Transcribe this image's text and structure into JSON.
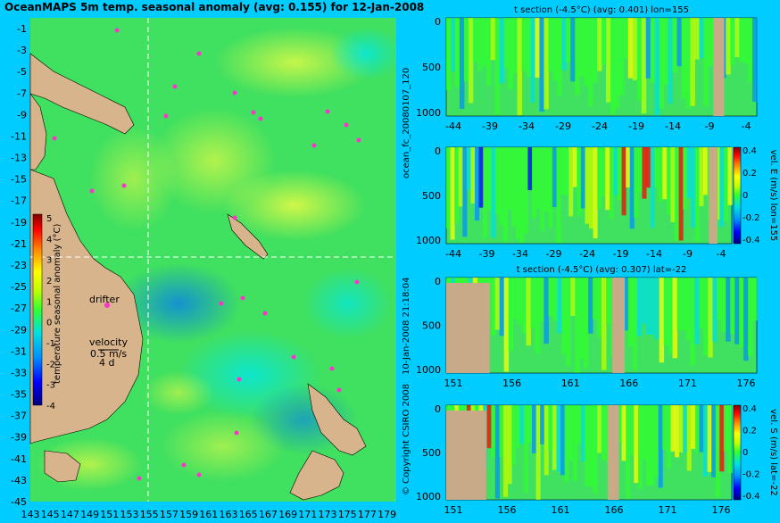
{
  "map": {
    "title": "OceanMAPS 5m temp. seasonal anomaly (avg: 0.155) for 12-Jan-2008",
    "lat_ticks": [
      "-1",
      "-3",
      "-5",
      "-7",
      "-9",
      "-11",
      "-13",
      "-15",
      "-17",
      "-19",
      "-21",
      "-23",
      "-25",
      "-27",
      "-29",
      "-31",
      "-33",
      "-35",
      "-37",
      "-39",
      "-41",
      "-43",
      "-45"
    ],
    "lon_ticks": [
      "143",
      "145",
      "147",
      "149",
      "151",
      "153",
      "155",
      "157",
      "159",
      "161",
      "163",
      "165",
      "167",
      "169",
      "171",
      "173",
      "175",
      "177",
      "179"
    ],
    "drifter_label": "drifter",
    "velocity_label": "velocity",
    "velocity_value": "0.5 m/s",
    "velocity_days": "4 d",
    "colorbar": {
      "label": "temperature seasonal anomaly (°C)",
      "ticks": [
        "5",
        "4",
        "3",
        "2",
        "1",
        "0",
        "-1",
        "-2",
        "-3",
        "-4"
      ]
    }
  },
  "side_texts": {
    "run_id": "ocean_fc_20080107_120",
    "timestamp": "10-Jan-2008 21:18:04",
    "copyright": "© Copyright CSIRO 2008"
  },
  "panels": [
    {
      "title": "t section (-4.5°C) (avg: 0.401) lon=155",
      "y_ticks": [
        "0",
        "500",
        "1000"
      ],
      "x_ticks": [
        "-44",
        "-39",
        "-34",
        "-29",
        "-24",
        "-19",
        "-14",
        "-9",
        "-4"
      ],
      "right_label": ""
    },
    {
      "title": "",
      "y_ticks": [
        "0",
        "500",
        "1000"
      ],
      "x_ticks": [
        "-44",
        "-39",
        "-34",
        "-29",
        "-24",
        "-19",
        "-14",
        "-9",
        "-4"
      ],
      "right_label": "vel. E (m/s) lon=155",
      "cbar_ticks": [
        "0.4",
        "0.2",
        "0",
        "-0.2",
        "-0.4"
      ]
    },
    {
      "title": "t section (-4.5°C) (avg: 0.307) lat=-22",
      "y_ticks": [
        "0",
        "500",
        "1000"
      ],
      "x_ticks": [
        "151",
        "156",
        "161",
        "166",
        "171",
        "176"
      ],
      "right_label": ""
    },
    {
      "title": "",
      "y_ticks": [
        "0",
        "500",
        "1000"
      ],
      "x_ticks": [
        "151",
        "156",
        "161",
        "166",
        "171",
        "176"
      ],
      "right_label": "vel. S (m/s) lat=-22",
      "cbar_ticks": [
        "0.4",
        "0.2",
        "0",
        "-0.2",
        "-0.4"
      ]
    }
  ],
  "colors": {
    "background": "#00ccff",
    "land": "#d8b48c",
    "section_mask": "#c8aa88",
    "drifter": "#ff33cc",
    "scale": [
      "#00007f",
      "#0000ff",
      "#0080ff",
      "#00e0ff",
      "#40ff40",
      "#c0ff00",
      "#ffff00",
      "#ff8000",
      "#ff0000",
      "#800000"
    ]
  },
  "chart_data": [
    {
      "type": "heatmap",
      "title": "OceanMAPS 5m temp. seasonal anomaly (avg: 0.155) for 12-Jan-2008",
      "x_ticks": [
        143,
        145,
        147,
        149,
        151,
        153,
        155,
        157,
        159,
        161,
        163,
        165,
        167,
        169,
        171,
        173,
        175,
        177,
        179
      ],
      "y_ticks": [
        -1,
        -3,
        -5,
        -7,
        -9,
        -11,
        -13,
        -15,
        -17,
        -19,
        -21,
        -23,
        -25,
        -27,
        -29,
        -31,
        -33,
        -35,
        -37,
        -39,
        -41,
        -43,
        -45
      ],
      "xlim": [
        143,
        180
      ],
      "ylim": [
        -45,
        0
      ],
      "colorbar_range": [
        -4,
        5
      ],
      "colorbar_label": "temperature seasonal anomaly (°C)",
      "section_lines": {
        "lon": 155,
        "lat": -22
      }
    },
    {
      "type": "heatmap",
      "title": "t section (-4.5°C) (avg: 0.401) lon=155",
      "x_ticks": [
        -44,
        -39,
        -34,
        -29,
        -24,
        -19,
        -14,
        -9,
        -4
      ],
      "y_ticks": [
        0,
        500,
        1000
      ],
      "xlim": [
        -45,
        -1
      ],
      "ylim": [
        1000,
        0
      ]
    },
    {
      "type": "heatmap",
      "x_ticks": [
        -44,
        -39,
        -34,
        -29,
        -24,
        -19,
        -14,
        -9,
        -4
      ],
      "y_ticks": [
        0,
        500,
        1000
      ],
      "ylabel": "vel. E (m/s) lon=155",
      "colorbar_range": [
        -0.4,
        0.4
      ]
    },
    {
      "type": "heatmap",
      "title": "t section (-4.5°C) (avg: 0.307) lat=-22",
      "x_ticks": [
        151,
        156,
        161,
        166,
        171,
        176
      ],
      "y_ticks": [
        0,
        500,
        1000
      ],
      "xlim": [
        150,
        180
      ],
      "ylim": [
        1000,
        0
      ]
    },
    {
      "type": "heatmap",
      "x_ticks": [
        151,
        156,
        161,
        166,
        171,
        176
      ],
      "y_ticks": [
        0,
        500,
        1000
      ],
      "ylabel": "vel. S (m/s) lat=-22",
      "colorbar_range": [
        -0.4,
        0.4
      ]
    }
  ]
}
